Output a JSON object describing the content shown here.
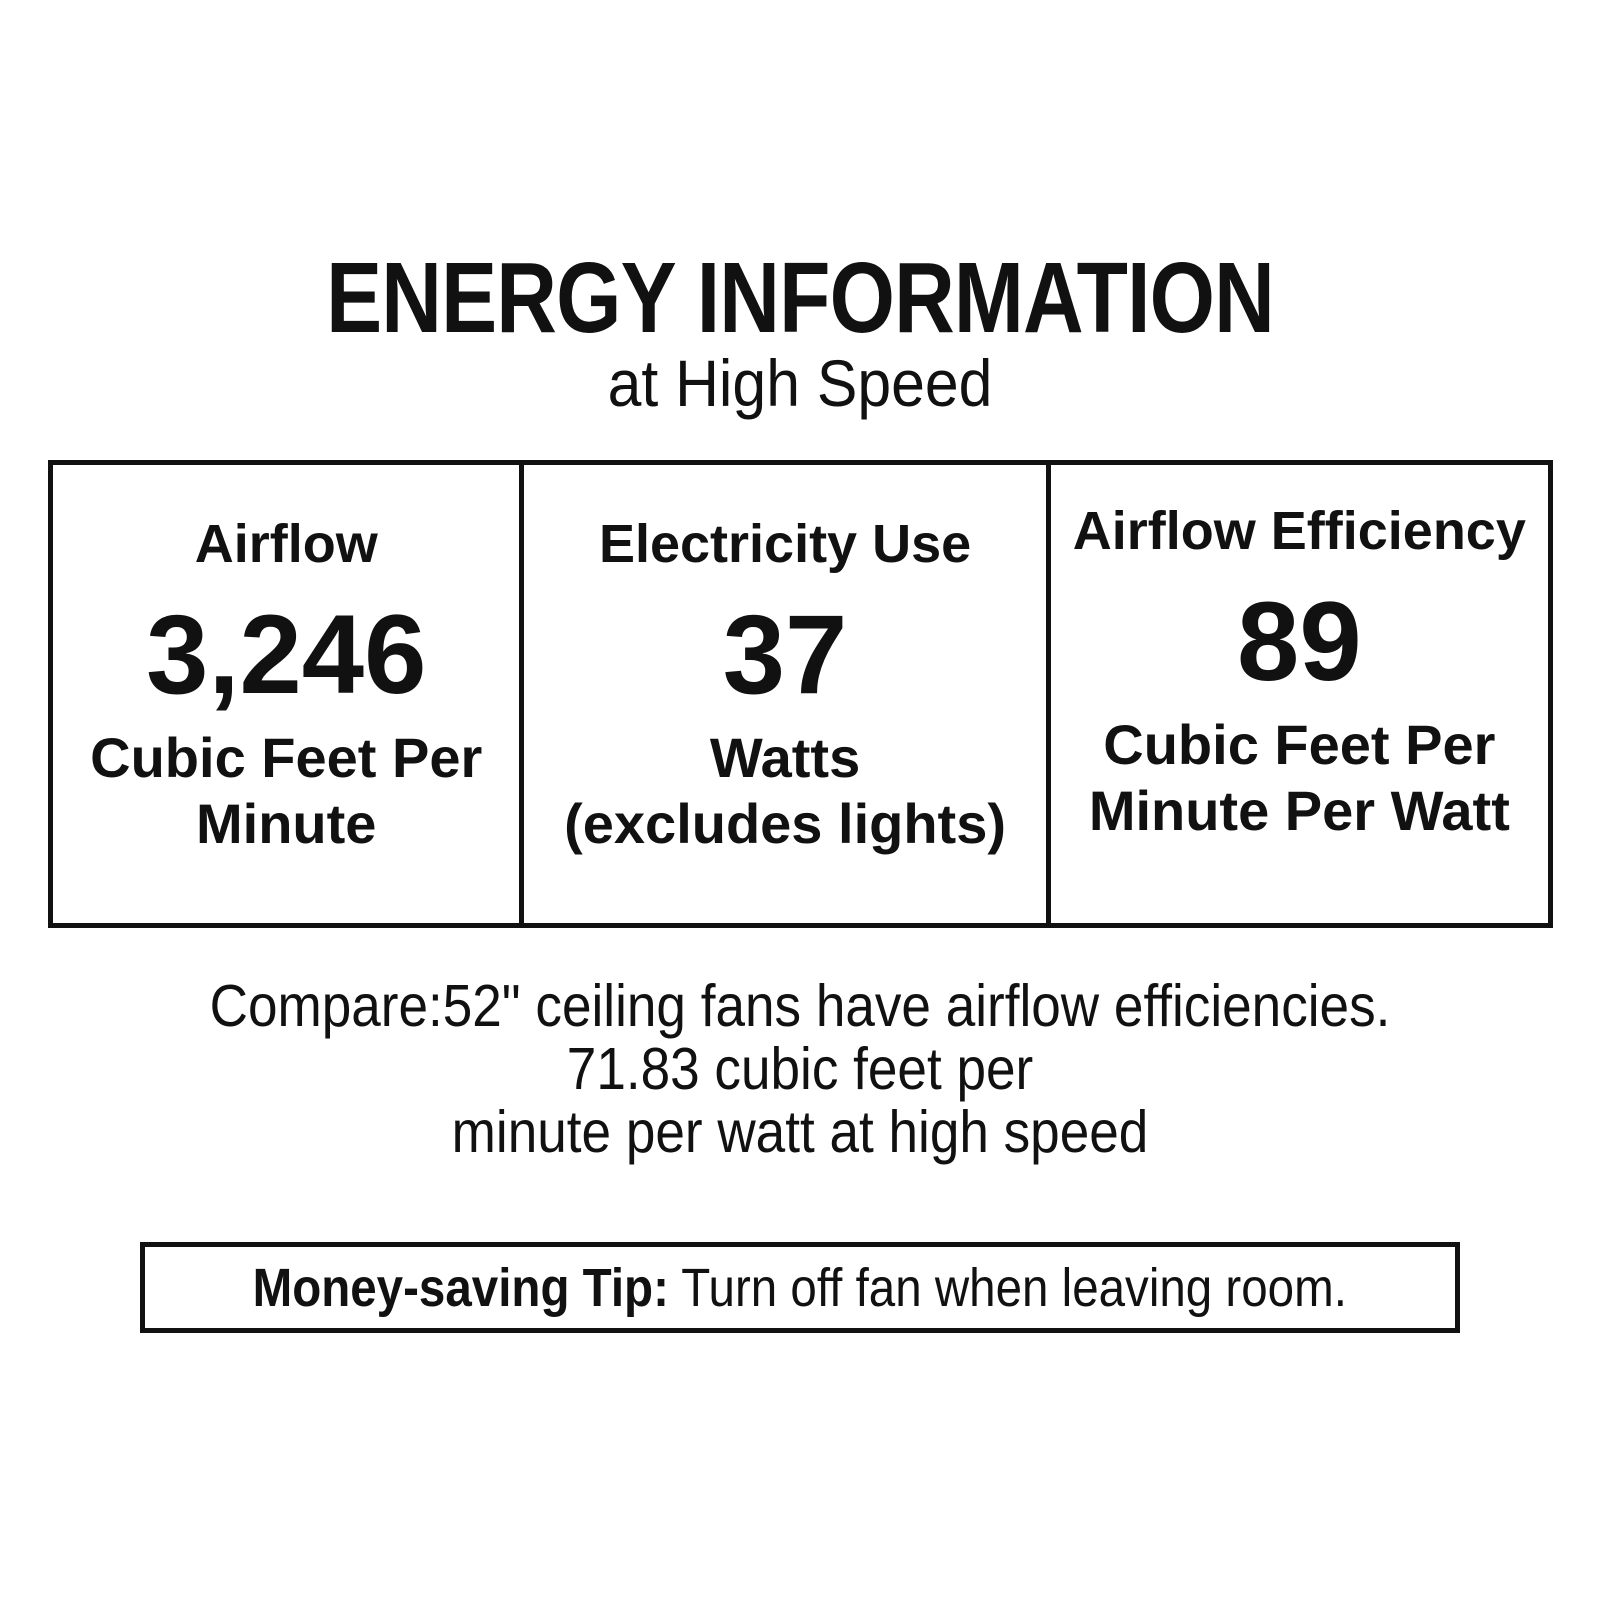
{
  "colors": {
    "ink": "#111111",
    "background": "#ffffff"
  },
  "header": {
    "title": "ENERGY INFORMATION",
    "subtitle": "at High Speed"
  },
  "energy_table": {
    "columns": [
      {
        "label": "Airflow",
        "value": "3,246",
        "unit_line1": "Cubic Feet Per",
        "unit_line2": "Minute"
      },
      {
        "label": "Electricity Use",
        "value": "37",
        "unit_line1": "Watts",
        "unit_line2": "(excludes lights)"
      },
      {
        "label": "Airflow Efficiency",
        "value": "89",
        "unit_line1": "Cubic Feet Per",
        "unit_line2": "Minute Per Watt"
      }
    ]
  },
  "compare": {
    "line1": "Compare:52\" ceiling fans have airflow efficiencies.",
    "line2": "71.83 cubic feet per",
    "line3": "minute per watt at high speed"
  },
  "tip": {
    "label": "Money-saving Tip:",
    "text": " Turn off fan when leaving room."
  }
}
